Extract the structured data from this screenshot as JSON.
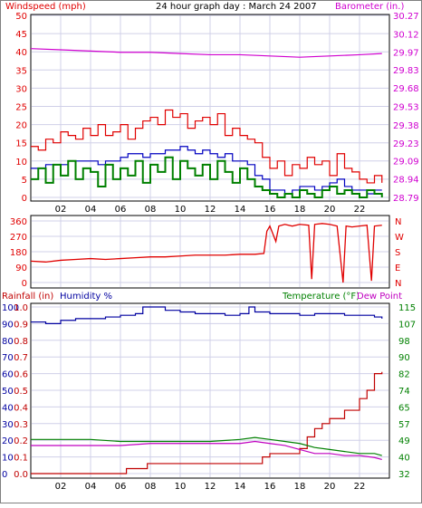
{
  "title": "24 hour graph day : March 24 2007",
  "colors": {
    "wind": "#e00000",
    "gust": "#e00000",
    "avg": "#0000c0",
    "green": "#008000",
    "baro": "#d000d0",
    "dir": "#e00000",
    "humidity": "#0000a0",
    "rain": "#c00000",
    "temp": "#008000",
    "dew": "#c000c0",
    "grid": "#d0d0e8",
    "axis": "#000000"
  },
  "x_ticks": [
    "02",
    "04",
    "06",
    "08",
    "10",
    "12",
    "14",
    "16",
    "18",
    "20",
    "22"
  ],
  "chart_data": [
    {
      "type": "line",
      "name": "wind-barometer",
      "left_label": "Windspeed (mph)",
      "right_label": "Barometer (in.)",
      "left_ticks": [
        "0",
        "5",
        "10",
        "15",
        "20",
        "25",
        "30",
        "35",
        "40",
        "45",
        "50"
      ],
      "right_ticks": [
        "28.79",
        "28.94",
        "29.09",
        "29.23",
        "29.38",
        "29.53",
        "29.68",
        "29.83",
        "29.97",
        "30.12",
        "30.27"
      ],
      "ylim_left": [
        0,
        50
      ],
      "ylim_right": [
        28.79,
        30.27
      ],
      "xlim": [
        0,
        24
      ],
      "series": [
        {
          "key": "gust",
          "axis": "left",
          "x": [
            0,
            0.5,
            1,
            1.5,
            2,
            2.5,
            3,
            3.5,
            4,
            4.5,
            5,
            5.5,
            6,
            6.5,
            7,
            7.5,
            8,
            8.5,
            9,
            9.5,
            10,
            10.5,
            11,
            11.5,
            12,
            12.5,
            13,
            13.5,
            14,
            14.5,
            15,
            15.5,
            16,
            16.5,
            17,
            17.5,
            18,
            18.5,
            19,
            19.5,
            20,
            20.5,
            21,
            21.5,
            22,
            22.5,
            23,
            23.5
          ],
          "y": [
            14,
            13,
            16,
            15,
            18,
            17,
            16,
            19,
            17,
            20,
            17,
            18,
            20,
            16,
            19,
            21,
            22,
            20,
            24,
            22,
            23,
            19,
            21,
            22,
            20,
            23,
            17,
            19,
            17,
            16,
            15,
            11,
            8,
            10,
            6,
            9,
            8,
            11,
            9,
            10,
            6,
            12,
            8,
            7,
            5,
            4,
            6,
            4
          ]
        },
        {
          "key": "avg",
          "axis": "left",
          "x": [
            0,
            0.5,
            1,
            1.5,
            2,
            2.5,
            3,
            3.5,
            4,
            4.5,
            5,
            5.5,
            6,
            6.5,
            7,
            7.5,
            8,
            8.5,
            9,
            9.5,
            10,
            10.5,
            11,
            11.5,
            12,
            12.5,
            13,
            13.5,
            14,
            14.5,
            15,
            15.5,
            16,
            16.5,
            17,
            17.5,
            18,
            18.5,
            19,
            19.5,
            20,
            20.5,
            21,
            21.5,
            22,
            22.5,
            23,
            23.5
          ],
          "y": [
            8,
            8,
            9,
            9,
            9,
            10,
            10,
            10,
            10,
            9,
            10,
            10,
            11,
            12,
            12,
            11,
            12,
            12,
            13,
            13,
            14,
            13,
            12,
            13,
            12,
            11,
            12,
            10,
            10,
            9,
            6,
            5,
            2,
            2,
            1,
            2,
            3,
            3,
            2,
            3,
            4,
            5,
            3,
            2,
            2,
            1,
            2,
            2
          ]
        },
        {
          "key": "green",
          "axis": "left",
          "x": [
            0,
            0.5,
            1,
            1.5,
            2,
            2.5,
            3,
            3.5,
            4,
            4.5,
            5,
            5.5,
            6,
            6.5,
            7,
            7.5,
            8,
            8.5,
            9,
            9.5,
            10,
            10.5,
            11,
            11.5,
            12,
            12.5,
            13,
            13.5,
            14,
            14.5,
            15,
            15.5,
            16,
            16.5,
            17,
            17.5,
            18,
            18.5,
            19,
            19.5,
            20,
            20.5,
            21,
            21.5,
            22,
            22.5,
            23,
            23.5
          ],
          "y": [
            5,
            8,
            4,
            9,
            6,
            10,
            5,
            8,
            7,
            3,
            9,
            5,
            8,
            6,
            10,
            4,
            9,
            7,
            11,
            5,
            10,
            8,
            6,
            9,
            5,
            10,
            7,
            4,
            8,
            5,
            3,
            2,
            1,
            0,
            1,
            0,
            2,
            1,
            0,
            2,
            3,
            1,
            2,
            1,
            0,
            2,
            1,
            0
          ]
        },
        {
          "key": "baro",
          "axis": "right",
          "x": [
            0,
            2,
            4,
            6,
            8,
            10,
            12,
            14,
            16,
            18,
            20,
            22,
            23.5
          ],
          "y": [
            30.0,
            29.99,
            29.98,
            29.97,
            29.97,
            29.96,
            29.95,
            29.95,
            29.94,
            29.93,
            29.94,
            29.95,
            29.96
          ]
        }
      ]
    },
    {
      "type": "line",
      "name": "wind-direction",
      "left_ticks": [
        "0",
        "90",
        "180",
        "270",
        "360"
      ],
      "right_ticks": [
        "N",
        "E",
        "S",
        "W",
        "N"
      ],
      "ylim_left": [
        0,
        360
      ],
      "xlim": [
        0,
        24
      ],
      "series": [
        {
          "key": "dir",
          "axis": "left",
          "x": [
            0,
            1,
            2,
            3,
            4,
            5,
            6,
            7,
            8,
            9,
            10,
            11,
            12,
            13,
            14,
            15,
            15.6,
            15.8,
            16,
            16.4,
            16.6,
            17,
            17.5,
            18,
            18.6,
            18.8,
            19,
            19.5,
            20,
            20.5,
            20.9,
            21.1,
            21.5,
            22,
            22.5,
            22.8,
            23,
            23.5
          ],
          "y": [
            125,
            120,
            130,
            135,
            140,
            135,
            140,
            145,
            150,
            150,
            155,
            160,
            160,
            160,
            165,
            165,
            170,
            300,
            330,
            240,
            330,
            340,
            330,
            340,
            335,
            20,
            340,
            345,
            340,
            330,
            0,
            330,
            325,
            330,
            335,
            10,
            330,
            335
          ]
        }
      ]
    },
    {
      "type": "line",
      "name": "rain-humidity-temperature",
      "left_label_rain": "Rainfall (in)",
      "left_label_hum": "Humidity %",
      "right_label_temp": "Temperature (°F)",
      "right_label_dew": "Dew Point",
      "rain_ticks": [
        "0.0",
        "0.1",
        "0.2",
        "0.3",
        "0.4",
        "0.5",
        "0.6",
        "0.7",
        "0.8",
        "0.9",
        "1.0"
      ],
      "hum_ticks": [
        "0",
        "10",
        "20",
        "30",
        "40",
        "50",
        "60",
        "70",
        "80",
        "90",
        "100"
      ],
      "temp_ticks": [
        "32",
        "40",
        "49",
        "57",
        "65",
        "74",
        "82",
        "90",
        "98",
        "107",
        "115"
      ],
      "ylim_rain": [
        0,
        1.0
      ],
      "ylim_temp": [
        32,
        115
      ],
      "xlim": [
        0,
        24
      ],
      "series": [
        {
          "key": "humidity",
          "axis": "left",
          "x": [
            0,
            1,
            2,
            3,
            4,
            5,
            6,
            7,
            7.5,
            8,
            9,
            10,
            11,
            12,
            13,
            14,
            14.6,
            15,
            16,
            17,
            18,
            19,
            20,
            21,
            22,
            23,
            23.5
          ],
          "y": [
            91,
            90,
            92,
            93,
            93,
            94,
            95,
            96,
            100,
            100,
            98,
            97,
            96,
            96,
            95,
            96,
            100,
            97,
            96,
            96,
            95,
            96,
            96,
            95,
            95,
            94,
            93
          ]
        },
        {
          "key": "rain",
          "axis": "left_rain",
          "x": [
            0,
            6,
            6.4,
            7,
            7.8,
            8,
            10,
            14,
            15.5,
            16,
            17,
            18,
            18.5,
            19,
            19.5,
            20,
            21,
            22,
            22.5,
            23,
            23.5
          ],
          "y": [
            0,
            0,
            0.03,
            0.03,
            0.06,
            0.06,
            0.06,
            0.06,
            0.1,
            0.12,
            0.12,
            0.15,
            0.22,
            0.27,
            0.3,
            0.33,
            0.38,
            0.45,
            0.5,
            0.6,
            0.61
          ]
        },
        {
          "key": "temp",
          "axis": "right",
          "x": [
            0,
            2,
            4,
            6,
            8,
            10,
            12,
            14,
            15,
            16,
            17,
            18,
            19,
            20,
            21,
            22,
            23,
            23.5
          ],
          "y": [
            49,
            49,
            49,
            48,
            48,
            48,
            48,
            49,
            50,
            49,
            48,
            47,
            45,
            44,
            43,
            42,
            42,
            41
          ]
        },
        {
          "key": "dew",
          "axis": "right",
          "x": [
            0,
            2,
            4,
            6,
            8,
            10,
            12,
            14,
            15,
            16,
            17,
            18,
            19,
            20,
            21,
            22,
            23,
            23.5
          ],
          "y": [
            46,
            46,
            46,
            46,
            47,
            47,
            47,
            47,
            48,
            47,
            46,
            44,
            42,
            42,
            41,
            41,
            40,
            39
          ]
        }
      ]
    }
  ]
}
